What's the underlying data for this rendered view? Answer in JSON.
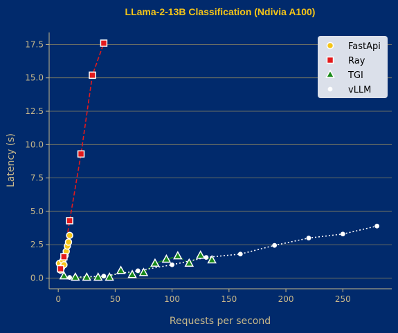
{
  "chart_data": {
    "type": "scatter",
    "title": "LLama-2-13B Classification (Ndivia A100)",
    "xlabel": "Requests per second",
    "ylabel": "Latency (s)",
    "xlim": [
      -8,
      293
    ],
    "ylim": [
      -0.8,
      18.4
    ],
    "xticks": [
      0,
      50,
      100,
      150,
      200,
      250
    ],
    "yticks": [
      0.0,
      2.5,
      5.0,
      7.5,
      10.0,
      12.5,
      15.0,
      17.5
    ],
    "ytick_labels": [
      "0.0",
      "2.5",
      "5.0",
      "7.5",
      "10.0",
      "12.5",
      "15.0",
      "17.5"
    ],
    "grid": "horizontal",
    "legend_position": "top-right",
    "series": [
      {
        "name": "FastApi",
        "marker": "circle",
        "color": "#f5c518",
        "line": "none",
        "x": [
          1,
          2,
          3,
          4,
          5,
          6,
          7,
          8,
          9,
          10
        ],
        "y": [
          1.1,
          0.6,
          0.8,
          1.3,
          1.0,
          1.7,
          2.0,
          2.4,
          2.7,
          3.2
        ]
      },
      {
        "name": "Ray",
        "marker": "square",
        "color": "#e31a1c",
        "line": "dashed",
        "x": [
          2,
          5,
          10,
          20,
          30,
          40
        ],
        "y": [
          0.7,
          1.6,
          4.3,
          9.3,
          15.2,
          17.6
        ]
      },
      {
        "name": "TGI",
        "marker": "triangle",
        "color": "#1a8a1a",
        "line": "dashdot",
        "x": [
          5,
          15,
          25,
          35,
          45,
          55,
          65,
          75,
          85,
          95,
          105,
          115,
          125,
          135
        ],
        "y": [
          0.15,
          0.05,
          0.05,
          0.05,
          0.05,
          0.55,
          0.25,
          0.4,
          1.1,
          1.4,
          1.65,
          1.1,
          1.7,
          1.35
        ]
      },
      {
        "name": "vLLM",
        "marker": "circle",
        "color": "#ffffff",
        "line": "dotted",
        "x": [
          10,
          40,
          70,
          100,
          130,
          160,
          190,
          220,
          250,
          280
        ],
        "y": [
          0.05,
          0.15,
          0.55,
          1.0,
          1.55,
          1.8,
          2.45,
          3.0,
          3.3,
          3.9
        ]
      }
    ]
  },
  "colors": {
    "background": "#012a6c",
    "title": "#f5c518",
    "axis_text": "#c8b98a",
    "grid": "#8c8560",
    "legend_bg": "#dbe0ea"
  }
}
